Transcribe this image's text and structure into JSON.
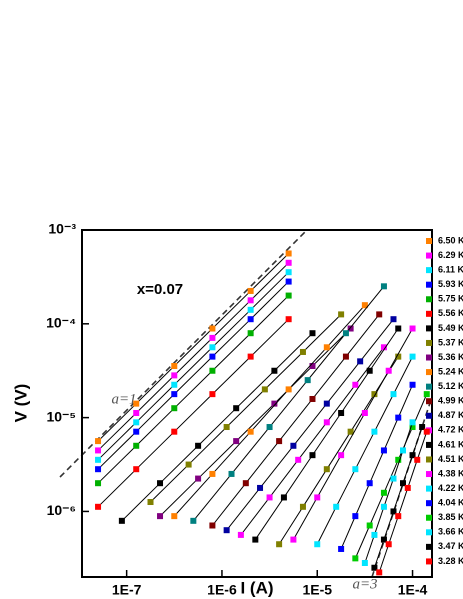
{
  "chart_data": {
    "type": "line",
    "log_x": true,
    "log_y": true,
    "x_label": "I (A)",
    "y_label": "V (V)",
    "annotations": [
      "x=0.07",
      "a=1",
      "a=3"
    ],
    "xlim": [
      3.4e-08,
      0.00016
    ],
    "ylim": [
      2e-07,
      0.001
    ],
    "xticks": [
      {
        "value": 1e-07,
        "label": "1E-7"
      },
      {
        "value": 1e-06,
        "label": "1E-6"
      },
      {
        "value": 1e-05,
        "label": "1E-5"
      },
      {
        "value": 0.0001,
        "label": "1E-4"
      }
    ],
    "yticks": [
      {
        "value": 1e-06,
        "label": "10⁻⁶"
      },
      {
        "value": 1e-05,
        "label": "10⁻⁵"
      },
      {
        "value": 0.0001,
        "label": "10⁻⁴"
      },
      {
        "value": 0.001,
        "label": "10⁻³"
      }
    ],
    "series": [
      {
        "name": "6.50 K",
        "color": "#ff8000",
        "x": [
          5.01e-08,
          1.26e-07,
          3.16e-07,
          7.94e-07,
          2e-06,
          5.01e-06
        ],
        "values": [
          5.62e-06,
          1.41e-05,
          3.55e-05,
          8.91e-05,
          0.000224,
          0.000562
        ]
      },
      {
        "name": "6.29 K",
        "color": "#ff00ff",
        "x": [
          5.01e-08,
          1.26e-07,
          3.16e-07,
          7.94e-07,
          2e-06,
          5.01e-06
        ],
        "values": [
          4.47e-06,
          1.12e-05,
          2.82e-05,
          7.08e-05,
          0.000178,
          0.000447
        ]
      },
      {
        "name": "6.11 K",
        "color": "#00e5ff",
        "x": [
          5.01e-08,
          1.26e-07,
          3.16e-07,
          7.94e-07,
          2e-06,
          5.01e-06
        ],
        "values": [
          3.55e-06,
          8.91e-06,
          2.24e-05,
          5.62e-05,
          0.000141,
          0.000355
        ]
      },
      {
        "name": "5.93 K",
        "color": "#0000ff",
        "x": [
          5.01e-08,
          1.26e-07,
          3.16e-07,
          7.94e-07,
          2e-06,
          5.01e-06
        ],
        "values": [
          2.82e-06,
          7.08e-06,
          1.78e-05,
          4.47e-05,
          0.000112,
          0.000282
        ]
      },
      {
        "name": "5.75 K",
        "color": "#00b000",
        "x": [
          5.01e-08,
          1.26e-07,
          3.16e-07,
          7.94e-07,
          2e-06,
          5.01e-06
        ],
        "values": [
          2e-06,
          5.01e-06,
          1.26e-05,
          3.16e-05,
          7.94e-05,
          0.0002
        ]
      },
      {
        "name": "5.56 K",
        "color": "#ff0000",
        "x": [
          5.01e-08,
          1.26e-07,
          3.16e-07,
          7.94e-07,
          2e-06,
          5.01e-06
        ],
        "values": [
          1.12e-06,
          2.82e-06,
          7.08e-06,
          1.78e-05,
          4.47e-05,
          0.000112
        ]
      },
      {
        "name": "5.49 K",
        "color": "#000000",
        "x": [
          8.91e-08,
          2.24e-07,
          5.62e-07,
          1.41e-06,
          3.55e-06,
          8.91e-06
        ],
        "values": [
          7.94e-07,
          2e-06,
          5.01e-06,
          1.26e-05,
          3.16e-05,
          7.94e-05
        ]
      },
      {
        "name": "5.37 K",
        "color": "#808000",
        "x": [
          1.78e-07,
          4.47e-07,
          1.12e-06,
          2.82e-06,
          7.08e-06,
          1.78e-05
        ],
        "values": [
          1.26e-06,
          3.16e-06,
          7.94e-06,
          2e-05,
          5.01e-05,
          0.000126
        ]
      },
      {
        "name": "5.36 K",
        "color": "#800080",
        "x": [
          2.24e-07,
          5.62e-07,
          1.41e-06,
          3.55e-06,
          8.91e-06,
          2.24e-05
        ],
        "values": [
          8.91e-07,
          2.24e-06,
          5.62e-06,
          1.41e-05,
          3.55e-05,
          8.91e-05
        ]
      },
      {
        "name": "5.24 K",
        "color": "#ff8000",
        "x": [
          3.16e-07,
          7.94e-07,
          2e-06,
          5.01e-06,
          1.26e-05,
          3.16e-05
        ],
        "values": [
          8.91e-07,
          2.51e-06,
          7.08e-06,
          2e-05,
          5.62e-05,
          0.000158
        ]
      },
      {
        "name": "5.12 K",
        "color": "#008080",
        "x": [
          5.01e-07,
          1.26e-06,
          3.16e-06,
          7.94e-06,
          2e-05,
          5.01e-05
        ],
        "values": [
          7.94e-07,
          2.51e-06,
          7.94e-06,
          2.51e-05,
          7.94e-05,
          0.000251
        ]
      },
      {
        "name": "4.99 K",
        "color": "#800000",
        "x": [
          7.94e-07,
          1.78e-06,
          3.98e-06,
          8.91e-06,
          2e-05,
          4.47e-05
        ],
        "values": [
          7.08e-07,
          2e-06,
          5.62e-06,
          1.58e-05,
          4.47e-05,
          0.000126
        ]
      },
      {
        "name": "4.87 K",
        "color": "#0000a0",
        "x": [
          1.12e-06,
          2.51e-06,
          5.62e-06,
          1.26e-05,
          2.82e-05,
          6.31e-05
        ],
        "values": [
          6.31e-07,
          1.78e-06,
          5.01e-06,
          1.41e-05,
          3.98e-05,
          0.000112
        ]
      },
      {
        "name": "4.72 K",
        "color": "#ff00ff",
        "x": [
          1.58e-06,
          3.16e-06,
          6.31e-06,
          1.26e-05,
          2.51e-05,
          5.01e-05
        ],
        "values": [
          5.62e-07,
          1.41e-06,
          3.55e-06,
          8.91e-06,
          2.24e-05,
          5.62e-05
        ]
      },
      {
        "name": "4.61 K",
        "color": "#000000",
        "x": [
          2.24e-06,
          4.47e-06,
          8.91e-06,
          1.78e-05,
          3.55e-05,
          7.08e-05
        ],
        "values": [
          5.01e-07,
          1.41e-06,
          3.98e-06,
          1.12e-05,
          3.16e-05,
          8.91e-05
        ]
      },
      {
        "name": "4.51 K",
        "color": "#808000",
        "x": [
          3.98e-06,
          7.08e-06,
          1.26e-05,
          2.24e-05,
          3.98e-05,
          7.08e-05
        ],
        "values": [
          4.47e-07,
          1.12e-06,
          2.82e-06,
          7.08e-06,
          1.78e-05,
          4.47e-05
        ]
      },
      {
        "name": "4.38 K",
        "color": "#ff00ff",
        "x": [
          5.62e-06,
          1e-05,
          1.78e-05,
          3.16e-05,
          5.62e-05,
          0.0001
        ],
        "values": [
          5.01e-07,
          1.41e-06,
          3.98e-06,
          1.12e-05,
          3.16e-05,
          8.91e-05
        ]
      },
      {
        "name": "4.22 K",
        "color": "#00e5ff",
        "x": [
          1e-05,
          1.58e-05,
          2.51e-05,
          3.98e-05,
          6.31e-05,
          0.0001
        ],
        "values": [
          4.47e-07,
          1.12e-06,
          2.82e-06,
          7.08e-06,
          1.78e-05,
          4.47e-05
        ]
      },
      {
        "name": "4.04 K",
        "color": "#0000ff",
        "x": [
          1.78e-05,
          2.51e-05,
          3.55e-05,
          5.01e-05,
          7.08e-05,
          0.0001
        ],
        "values": [
          3.98e-07,
          8.91e-07,
          2e-06,
          4.47e-06,
          1e-05,
          2.24e-05
        ]
      },
      {
        "name": "3.85 K",
        "color": "#00cc00",
        "x": [
          2.51e-05,
          3.55e-05,
          5.01e-05,
          7.08e-05,
          0.0001,
          0.000141
        ],
        "values": [
          3.16e-07,
          7.08e-07,
          1.58e-06,
          3.55e-06,
          7.94e-06,
          1.78e-05
        ]
      },
      {
        "name": "3.66 K",
        "color": "#00e5ff",
        "x": [
          3.16e-05,
          3.98e-05,
          5.01e-05,
          6.31e-05,
          7.94e-05,
          0.0001
        ],
        "values": [
          2.82e-07,
          5.62e-07,
          1.12e-06,
          2.24e-06,
          4.47e-06,
          8.91e-06
        ]
      },
      {
        "name": "3.47 K",
        "color": "#000000",
        "x": [
          3.98e-05,
          5.01e-05,
          6.31e-05,
          7.94e-05,
          0.0001,
          0.000126
        ],
        "values": [
          2.51e-07,
          5.01e-07,
          1e-06,
          2e-06,
          3.98e-06,
          7.94e-06
        ]
      },
      {
        "name": "3.28 K",
        "color": "#ff0000",
        "x": [
          4.47e-05,
          5.62e-05,
          7.08e-05,
          8.91e-05,
          0.000112,
          0.000141
        ],
        "values": [
          2.24e-07,
          4.47e-07,
          8.91e-07,
          1.78e-06,
          3.55e-06,
          7.08e-06
        ]
      }
    ]
  }
}
